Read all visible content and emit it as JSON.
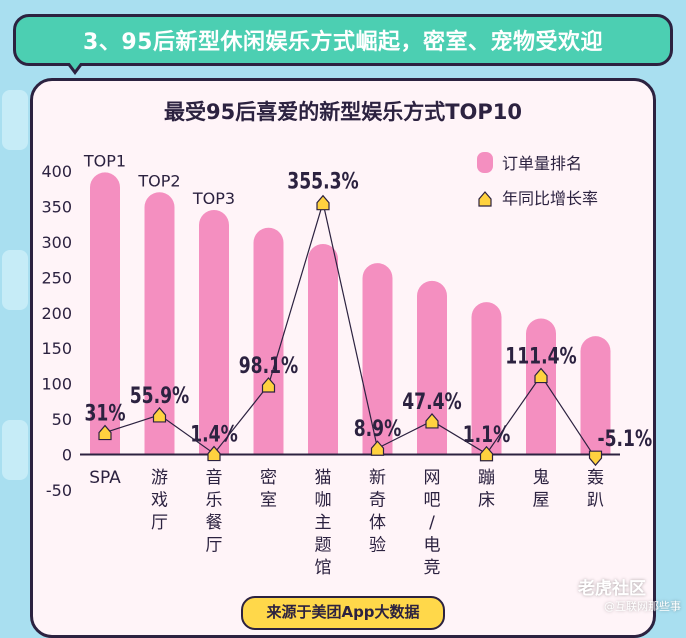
{
  "header": {
    "title": "3、95后新型休闲娱乐方式崛起，密室、宠物受欢迎"
  },
  "source": "来源于美团App大数据",
  "watermark": {
    "main": "老虎社区",
    "sub": "@互联网那些事"
  },
  "colors": {
    "bar": "#f48fc0",
    "marker": "#ffd23f",
    "line": "#2c2240",
    "header": "#4ccfb2",
    "panel": "#fff4f8"
  },
  "chart_data": {
    "type": "bar",
    "title": "最受95后喜爱的新型娱乐方式TOP10",
    "categories": [
      "SPA",
      "游戏厅",
      "音乐餐厅",
      "密室",
      "猫咖主题馆",
      "新奇体验",
      "网吧/电竞",
      "蹦床",
      "鬼屋",
      "轰趴"
    ],
    "category_display": [
      "SPA",
      "游\n戏\n厅",
      "音\n乐\n餐\n厅",
      "密\n室",
      "猫\n咖\n主\n题\n馆",
      "新\n奇\n体\n验",
      "网\n吧\n/\n电\n竞",
      "蹦\n床",
      "鬼\n屋",
      "轰\n趴"
    ],
    "series": [
      {
        "name": "订单量排名",
        "type": "bar",
        "values": [
          398,
          370,
          345,
          320,
          297,
          270,
          245,
          215,
          192,
          167
        ]
      },
      {
        "name": "年同比增长率",
        "type": "line",
        "unit": "%",
        "values": [
          31,
          55.9,
          1.4,
          98.1,
          355.3,
          8.9,
          47.4,
          1.1,
          111.4,
          -5.1
        ],
        "labels": [
          "31%",
          "55.9%",
          "1.4%",
          "98.1%",
          "355.3%",
          "8.9%",
          "47.4%",
          "1.1%",
          "111.4%",
          "-5.1%"
        ]
      }
    ],
    "rank_labels": [
      "TOP1",
      "TOP2",
      "TOP3"
    ],
    "yticks": [
      "400",
      "350",
      "300",
      "250",
      "200",
      "150",
      "100",
      "50",
      "0",
      "-50"
    ],
    "ylim": [
      -50,
      400
    ],
    "legend": [
      "订单量排名",
      "年同比增长率"
    ],
    "legend_position": "top-right",
    "xlabel": "",
    "ylabel": ""
  }
}
